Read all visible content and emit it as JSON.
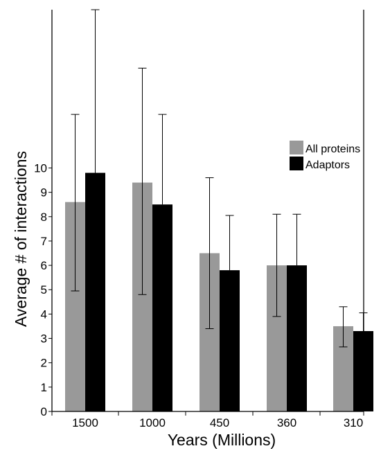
{
  "chart_data": {
    "type": "bar",
    "title": "",
    "xlabel": "Years (Millions)",
    "ylabel": "Average # of interactions",
    "categories": [
      "1500",
      "1000",
      "450",
      "360",
      "310"
    ],
    "yticks": [
      0,
      1,
      2,
      3,
      4,
      5,
      6,
      7,
      8,
      9,
      10
    ],
    "ylim": [
      0,
      16.5
    ],
    "grid": false,
    "legend_position": "top-right",
    "series": [
      {
        "name": "All proteins",
        "color": "#999999",
        "values": [
          8.6,
          9.4,
          6.5,
          6.0,
          3.5
        ],
        "error_low": [
          4.95,
          4.8,
          3.4,
          3.9,
          2.65
        ],
        "error_high": [
          12.2,
          14.1,
          9.6,
          8.1,
          4.3
        ]
      },
      {
        "name": "Adaptors",
        "color": "#000000",
        "values": [
          9.8,
          8.5,
          5.8,
          6.0,
          3.3
        ],
        "error_low": [
          null,
          null,
          null,
          null,
          null
        ],
        "error_high": [
          16.5,
          12.2,
          8.05,
          8.1,
          4.05
        ]
      }
    ]
  }
}
